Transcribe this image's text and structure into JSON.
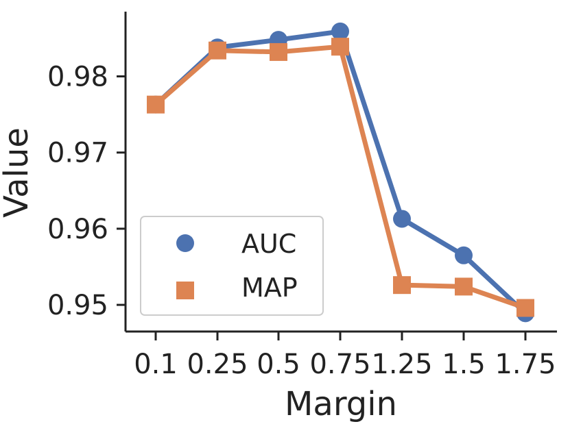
{
  "chart_data": {
    "type": "line",
    "title": "",
    "xlabel": "Margin",
    "ylabel": "Value",
    "categories": [
      "0.1",
      "0.25",
      "0.5",
      "0.75",
      "1.25",
      "1.5",
      "1.75"
    ],
    "y_ticks": [
      "0.95",
      "0.96",
      "0.97",
      "0.98"
    ],
    "y_tick_values": [
      0.95,
      0.96,
      0.97,
      0.98
    ],
    "ylim": [
      0.9465,
      0.9885
    ],
    "grid": false,
    "legend_position": "lower-left",
    "series": [
      {
        "name": "AUC",
        "marker": "circle",
        "color": "#4C72B0",
        "values": [
          0.9763,
          0.9838,
          0.9848,
          0.9859,
          0.9613,
          0.9565,
          0.9489
        ]
      },
      {
        "name": "MAP",
        "marker": "square",
        "color": "#DD8452",
        "values": [
          0.9763,
          0.9834,
          0.9832,
          0.9839,
          0.9526,
          0.9524,
          0.9496
        ]
      }
    ]
  }
}
